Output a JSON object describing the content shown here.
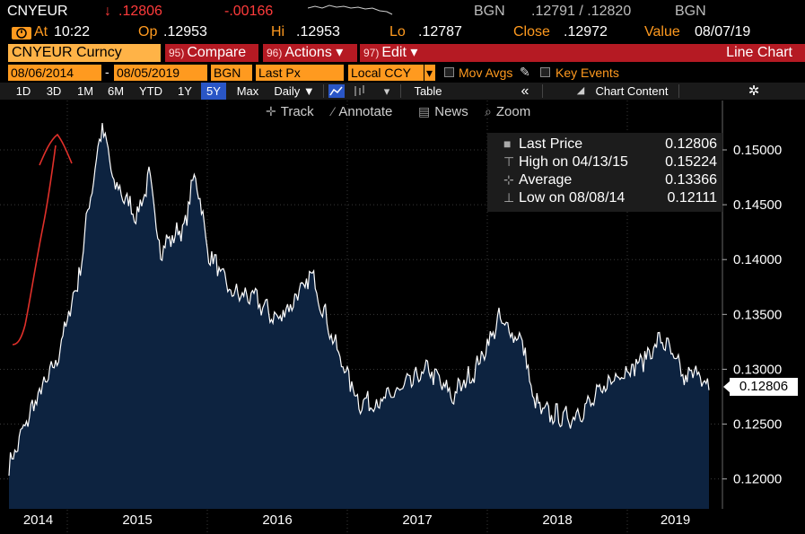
{
  "ticker": {
    "symbol": "CNYEUR",
    "arrow": "↓",
    "last": ".12806",
    "change": "-.00166",
    "source1": "BGN",
    "bid_ask": ".12791 / .12820",
    "source2": "BGN"
  },
  "stats": {
    "at_label": "At",
    "at_value": "10:22",
    "op_label": "Op",
    "op_value": ".12953",
    "hi_label": "Hi",
    "hi_value": ".12953",
    "lo_label": "Lo",
    "lo_value": ".12787",
    "close_label": "Close",
    "close_value": ".12972",
    "valuedate_label": "Value",
    "valuedate_value": "08/07/19"
  },
  "security": "CNYEUR Curncy",
  "menus": [
    {
      "num": "95)",
      "label": "Compare"
    },
    {
      "num": "96)",
      "label": "Actions ▾"
    },
    {
      "num": "97)",
      "label": "Edit ▾"
    }
  ],
  "view_title": "Line Chart",
  "range": {
    "start": "08/06/2014",
    "sep": "-",
    "end": "08/05/2019",
    "source": "BGN",
    "field": "Last Px",
    "currency": "Local CCY"
  },
  "options": {
    "mov_avgs": "Mov Avgs",
    "key_events": "Key Events"
  },
  "periods": [
    "1D",
    "3D",
    "1M",
    "6M",
    "YTD",
    "1Y",
    "5Y",
    "Max"
  ],
  "active_period": "5Y",
  "frequency": "Daily ▼",
  "table_label": "Table",
  "collapse_label": "«",
  "chart_content_label": "Chart Content",
  "tools": [
    "Track",
    "Annotate",
    "News",
    "Zoom"
  ],
  "legend": {
    "last_price_label": "Last Price",
    "last_price_value": "0.12806",
    "high_label": "High on 04/13/15",
    "high_value": "0.15224",
    "average_label": "Average",
    "average_value": "0.13366",
    "low_label": "Low on 08/08/14",
    "low_value": "0.12111"
  },
  "last_marker": "0.12806",
  "colors": {
    "accent_orange": "#ff9a1f",
    "menu_red": "#b51a23",
    "area_fill": "#0d2340",
    "line": "#ffffff",
    "annotation": "#e0302a"
  },
  "chart_data": {
    "type": "area",
    "title": "",
    "xlabel": "",
    "ylabel": "",
    "x_ticks": [
      "2014",
      "2015",
      "2016",
      "2017",
      "2018",
      "2019"
    ],
    "y_ticks": [
      "0.12000",
      "0.12500",
      "0.13000",
      "0.13500",
      "0.14000",
      "0.14500",
      "0.15000"
    ],
    "ylim": [
      0.1185,
      0.1545
    ],
    "x": [
      "2014-08",
      "2014-10",
      "2014-12",
      "2015-02",
      "2015-03",
      "2015-04",
      "2015-05",
      "2015-07",
      "2015-08",
      "2015-09",
      "2015-11",
      "2015-12",
      "2016-01",
      "2016-03",
      "2016-05",
      "2016-07",
      "2016-09",
      "2016-10",
      "2016-12",
      "2017-02",
      "2017-04",
      "2017-06",
      "2017-08",
      "2017-10",
      "2017-12",
      "2018-02",
      "2018-04",
      "2018-05",
      "2018-06",
      "2018-08",
      "2018-10",
      "2018-12",
      "2019-02",
      "2019-04",
      "2019-06",
      "2019-07",
      "2019-08"
    ],
    "values": [
      0.1211,
      0.1265,
      0.1305,
      0.1385,
      0.146,
      0.1522,
      0.147,
      0.144,
      0.1475,
      0.141,
      0.143,
      0.148,
      0.141,
      0.137,
      0.1365,
      0.1345,
      0.137,
      0.1385,
      0.132,
      0.127,
      0.127,
      0.1285,
      0.13,
      0.1275,
      0.13,
      0.1345,
      0.1325,
      0.127,
      0.126,
      0.1255,
      0.127,
      0.1295,
      0.1305,
      0.1328,
      0.129,
      0.13,
      0.1281
    ],
    "grid": true,
    "legend_position": "top-right"
  }
}
